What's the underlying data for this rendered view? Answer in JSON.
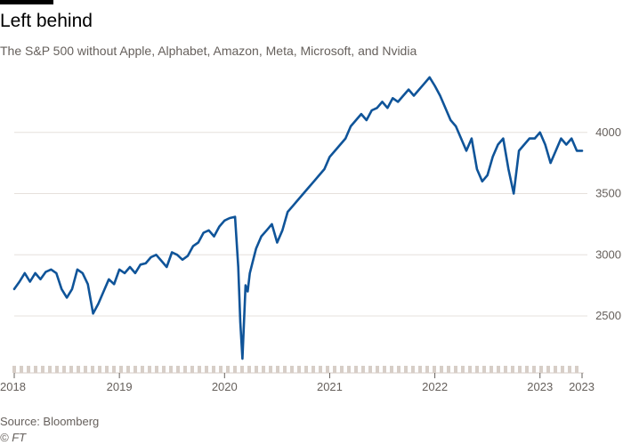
{
  "header": {
    "title": "Left behind",
    "subtitle": "The S&P 500 without Apple, Alphabet, Amazon, Meta, Microsoft, and Nvidia"
  },
  "footer": {
    "source": "Source: Bloomberg",
    "credit": "© FT"
  },
  "colors": {
    "line": "#0f5499",
    "grid": "#e6e0dc",
    "baseline": "#d7cec7",
    "text": "#66605c"
  },
  "chart_data": {
    "type": "line",
    "title": "Left behind",
    "subtitle": "The S&P 500 without Apple, Alphabet, Amazon, Meta, Microsoft, and Nvidia",
    "xlabel": "",
    "ylabel": "",
    "x_tick_labels": [
      "2018",
      "2019",
      "2020",
      "2021",
      "2022",
      "2023",
      "2023"
    ],
    "x_tick_positions": [
      2018.0,
      2019.0,
      2020.0,
      2021.0,
      2022.0,
      2023.0,
      2023.4
    ],
    "y_ticks": [
      2500,
      3000,
      3500,
      4000
    ],
    "xlim": [
      2018.0,
      2023.4
    ],
    "ylim": [
      2100,
      4500
    ],
    "y_axis_side": "right",
    "grid": true,
    "series": [
      {
        "x": [
          2018.0,
          2018.05,
          2018.1,
          2018.15,
          2018.2,
          2018.25,
          2018.3,
          2018.35,
          2018.4,
          2018.45,
          2018.5,
          2018.55,
          2018.6,
          2018.65,
          2018.7,
          2018.75,
          2018.8,
          2018.85,
          2018.9,
          2018.95,
          2019.0,
          2019.05,
          2019.1,
          2019.15,
          2019.2,
          2019.25,
          2019.3,
          2019.35,
          2019.4,
          2019.45,
          2019.5,
          2019.55,
          2019.6,
          2019.65,
          2019.7,
          2019.75,
          2019.8,
          2019.85,
          2019.9,
          2019.95,
          2020.0,
          2020.05,
          2020.1,
          2020.13,
          2020.15,
          2020.17,
          2020.2,
          2020.22,
          2020.24,
          2020.27,
          2020.3,
          2020.35,
          2020.4,
          2020.45,
          2020.5,
          2020.55,
          2020.6,
          2020.65,
          2020.7,
          2020.75,
          2020.8,
          2020.85,
          2020.9,
          2020.95,
          2021.0,
          2021.05,
          2021.1,
          2021.15,
          2021.2,
          2021.25,
          2021.3,
          2021.35,
          2021.4,
          2021.45,
          2021.5,
          2021.55,
          2021.6,
          2021.65,
          2021.7,
          2021.75,
          2021.8,
          2021.85,
          2021.9,
          2021.95,
          2022.0,
          2022.05,
          2022.1,
          2022.15,
          2022.2,
          2022.25,
          2022.3,
          2022.35,
          2022.4,
          2022.45,
          2022.5,
          2022.55,
          2022.6,
          2022.65,
          2022.7,
          2022.75,
          2022.8,
          2022.85,
          2022.9,
          2022.95,
          2023.0,
          2023.05,
          2023.1,
          2023.15,
          2023.2,
          2023.25,
          2023.3,
          2023.35,
          2023.4
        ],
        "values": [
          2720,
          2780,
          2850,
          2780,
          2850,
          2800,
          2860,
          2880,
          2850,
          2720,
          2650,
          2720,
          2880,
          2850,
          2760,
          2520,
          2600,
          2700,
          2800,
          2760,
          2880,
          2850,
          2900,
          2850,
          2920,
          2930,
          2980,
          3000,
          2950,
          2900,
          3020,
          3000,
          2960,
          2990,
          3070,
          3100,
          3180,
          3200,
          3150,
          3230,
          3280,
          3300,
          3310,
          2900,
          2450,
          2150,
          2750,
          2700,
          2850,
          2950,
          3050,
          3150,
          3200,
          3250,
          3100,
          3200,
          3350,
          3400,
          3450,
          3500,
          3550,
          3600,
          3650,
          3700,
          3800,
          3850,
          3900,
          3950,
          4050,
          4100,
          4150,
          4100,
          4180,
          4200,
          4250,
          4200,
          4280,
          4250,
          4300,
          4350,
          4300,
          4350,
          4400,
          4450,
          4380,
          4300,
          4200,
          4100,
          4050,
          3950,
          3850,
          3950,
          3700,
          3600,
          3650,
          3800,
          3900,
          3950,
          3700,
          3500,
          3850,
          3900,
          3950,
          3950,
          4000,
          3900,
          3750,
          3850,
          3950,
          3900,
          3950,
          3850,
          3850
        ]
      }
    ]
  }
}
